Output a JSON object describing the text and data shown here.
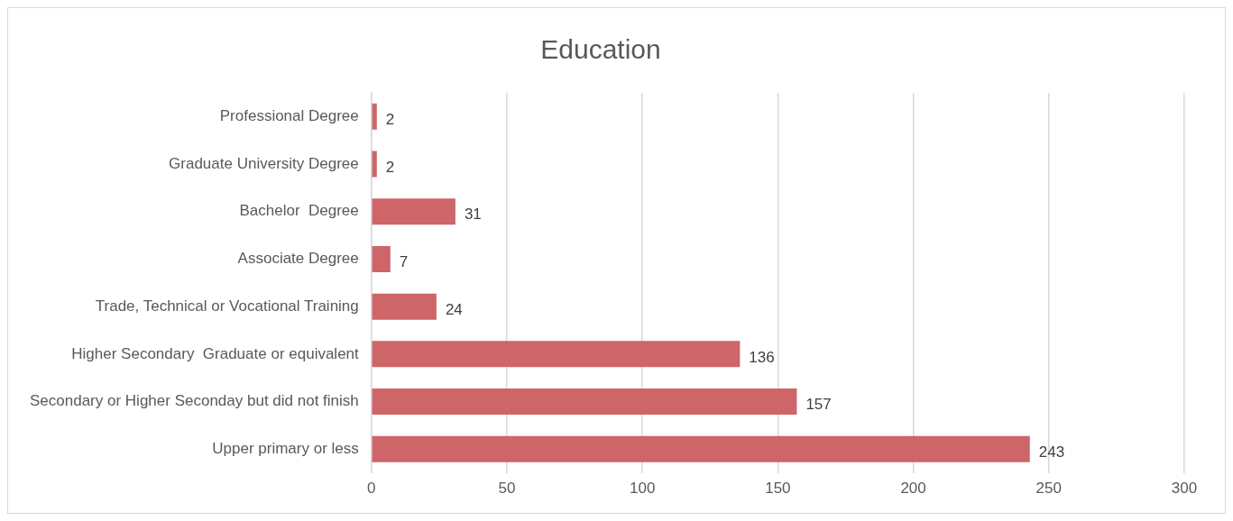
{
  "chart_data": {
    "type": "bar",
    "orientation": "horizontal",
    "title": "Education",
    "categories": [
      "Professional Degree",
      "Graduate University Degree",
      "Bachelor  Degree",
      "Associate Degree",
      "Trade, Technical or Vocational Training",
      "Higher Secondary  Graduate or equivalent",
      "Secondary or Higher Seconday but did not finish",
      "Upper primary or less"
    ],
    "values": [
      2,
      2,
      31,
      7,
      24,
      136,
      157,
      243
    ],
    "color": "#cd6569",
    "xlim": [
      0,
      300
    ],
    "xticks": [
      0,
      50,
      100,
      150,
      200,
      250,
      300
    ],
    "grid": "x",
    "legend": false,
    "data_labels": true
  }
}
